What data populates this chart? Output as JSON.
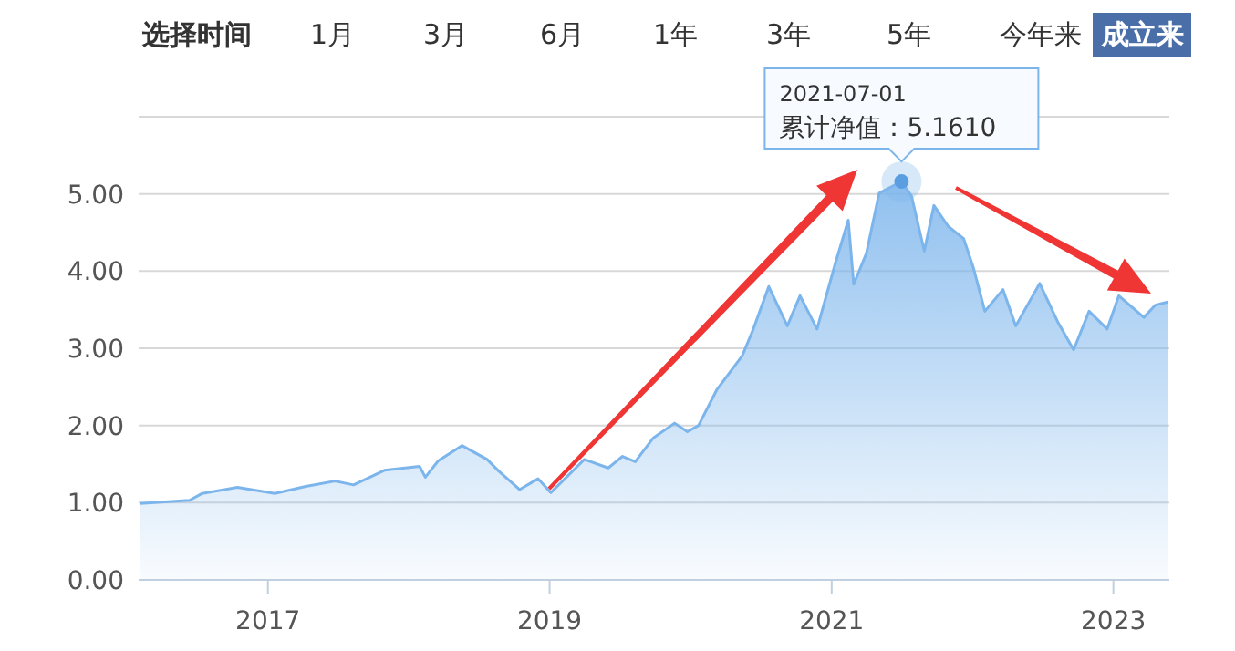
{
  "chart_data": {
    "type": "area",
    "color": "#7cb5ec",
    "grid": "y",
    "annotations": [
      "选择时间",
      "1月",
      "3月",
      "6月",
      "1年",
      "3年",
      "5年",
      "今年来",
      "成立来",
      "2021-07-01",
      {
        "text": "累计净值：5.1610",
        "x": "2021-07-01",
        "y": 5.16
      }
    ],
    "x": [
      "2016-02-05",
      "2016-06-12",
      "2016-07-15",
      "2016-10-14",
      "2017-01-19",
      "2017-04-09",
      "2017-06-24",
      "2017-08-11",
      "2017-10-30",
      "2018-01-29",
      "2018-02-13",
      "2018-03-18",
      "2018-05-19",
      "2018-07-23",
      "2018-08-22",
      "2018-10-15",
      "2018-12-02",
      "2019-01-04",
      "2019-04-01",
      "2019-06-02",
      "2019-07-09",
      "2019-08-11",
      "2019-09-27",
      "2019-11-21",
      "2019-12-24",
      "2020-01-22",
      "2020-03-09",
      "2020-05-14",
      "2020-06-12",
      "2020-07-22",
      "2020-09-08",
      "2020-10-11",
      "2020-11-24",
      "2021-01-11",
      "2021-02-13",
      "2021-02-27",
      "2021-04-01",
      "2021-05-04",
      "2021-07-01",
      "2021-07-27",
      "2021-08-29",
      "2021-09-23",
      "2021-10-30",
      "2021-12-09",
      "2022-01-04",
      "2022-02-02",
      "2022-03-21",
      "2022-04-23",
      "2022-06-24",
      "2022-08-11",
      "2022-09-20",
      "2022-10-30",
      "2022-12-16",
      "2023-01-15",
      "2023-03-21",
      "2023-04-20",
      "2023-05-22"
    ],
    "values": [
      0.99,
      1.03,
      1.12,
      1.2,
      1.12,
      1.21,
      1.28,
      1.23,
      1.42,
      1.47,
      1.33,
      1.54,
      1.74,
      1.56,
      1.41,
      1.17,
      1.31,
      1.13,
      1.56,
      1.45,
      1.6,
      1.53,
      1.84,
      2.03,
      1.92,
      2.0,
      2.46,
      2.9,
      3.25,
      3.8,
      3.29,
      3.68,
      3.25,
      4.11,
      4.66,
      3.83,
      4.23,
      5.01,
      5.16,
      4.97,
      4.26,
      4.85,
      4.58,
      4.42,
      4.03,
      3.48,
      3.76,
      3.29,
      3.84,
      3.33,
      2.98,
      3.48,
      3.25,
      3.68,
      3.4,
      3.56,
      3.6
    ],
    "xlim": [
      "2016-02-01",
      "2023-05-26"
    ],
    "xticks": [
      {
        "value": "2017-01-01",
        "label": "2017"
      },
      {
        "value": "2019-01-01",
        "label": "2019"
      },
      {
        "value": "2021-01-01",
        "label": "2021"
      },
      {
        "value": "2023-01-01",
        "label": "2023"
      }
    ],
    "ylim": [
      0,
      6
    ],
    "yticks": [
      {
        "value": 0,
        "label": "0.00"
      },
      {
        "value": 1,
        "label": "1.00"
      },
      {
        "value": 2,
        "label": "2.00"
      },
      {
        "value": 3,
        "label": "3.00"
      },
      {
        "value": 4,
        "label": "4.00"
      },
      {
        "value": 5,
        "label": "5.00"
      },
      {
        "value": 6,
        "label": null
      }
    ]
  }
}
